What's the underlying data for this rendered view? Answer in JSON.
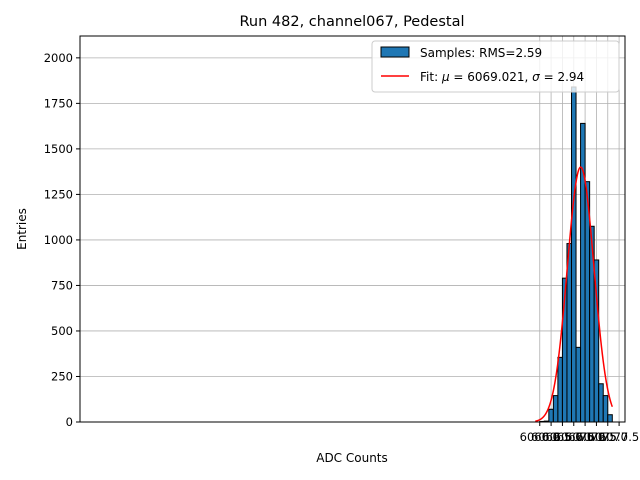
{
  "chart_data": {
    "type": "histogram",
    "title": "Run 482, channel067, Pedestal",
    "xlabel": "ADC Counts",
    "ylabel": "Entries",
    "xlim": [
      5958.6,
      6078.8
    ],
    "ylim": [
      0,
      2120
    ],
    "xticks": [
      6060.0,
      6062.5,
      6065.0,
      6067.5,
      6070.0,
      6072.5,
      6075.0,
      6077.5
    ],
    "xtick_labels": [
      "6060.0",
      "6062.5",
      "6065.0",
      "6067.5",
      "6070.0",
      "6072.5",
      "6075.0",
      "6077.5"
    ],
    "yticks": [
      0,
      250,
      500,
      750,
      1000,
      1250,
      1500,
      1750,
      2000
    ],
    "ytick_labels": [
      "0",
      "250",
      "500",
      "750",
      "1000",
      "1250",
      "1500",
      "1750",
      "2000"
    ],
    "grid": true,
    "bins": [
      {
        "x0": 6060,
        "x1": 6061,
        "count": 3
      },
      {
        "x0": 6061,
        "x1": 6062,
        "count": 5
      },
      {
        "x0": 6062,
        "x1": 6063,
        "count": 70
      },
      {
        "x0": 6063,
        "x1": 6064,
        "count": 145
      },
      {
        "x0": 6064,
        "x1": 6065,
        "count": 355
      },
      {
        "x0": 6065,
        "x1": 6066,
        "count": 790
      },
      {
        "x0": 6066,
        "x1": 6067,
        "count": 980
      },
      {
        "x0": 6067,
        "x1": 6068,
        "count": 1840
      },
      {
        "x0": 6068,
        "x1": 6069,
        "count": 410
      },
      {
        "x0": 6069,
        "x1": 6070,
        "count": 1640
      },
      {
        "x0": 6070,
        "x1": 6071,
        "count": 1320
      },
      {
        "x0": 6071,
        "x1": 6072,
        "count": 1075
      },
      {
        "x0": 6072,
        "x1": 6073,
        "count": 890
      },
      {
        "x0": 6073,
        "x1": 6074,
        "count": 210
      },
      {
        "x0": 6074,
        "x1": 6075,
        "count": 145
      },
      {
        "x0": 6075,
        "x1": 6076,
        "count": 40
      }
    ],
    "fit": {
      "mu": 6069.021,
      "sigma": 2.94,
      "amplitude": 1400,
      "x_range": [
        6059.0,
        6076.0
      ]
    },
    "legend_position": "upper right",
    "legend": [
      {
        "label": "Samples: RMS=2.59",
        "kind": "patch",
        "color": "#1f77b4"
      },
      {
        "label_prefix": "Fit: ",
        "mu_symbol": "μ",
        "mu_text": " = 6069.021, ",
        "sigma_symbol": "σ",
        "sigma_text": " = 2.94",
        "kind": "line",
        "color": "#ff0000"
      }
    ]
  }
}
